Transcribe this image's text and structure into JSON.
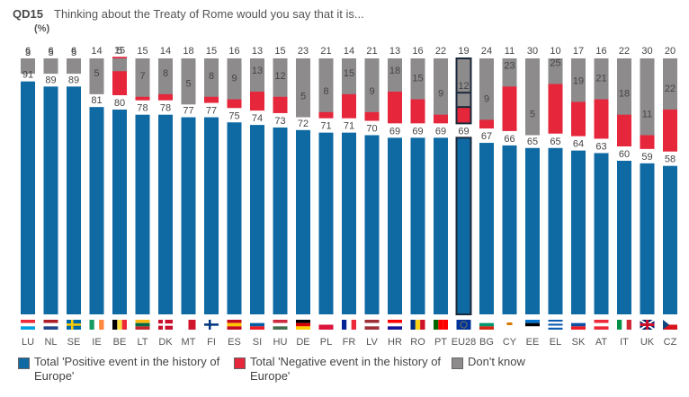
{
  "header": {
    "code": "QD15",
    "question": "Thinking about the Treaty of Rome would you say that it is...",
    "unit": "(%)"
  },
  "colors": {
    "positive": "#0f6aa3",
    "negative": "#e5263b",
    "dontknow": "#8e8b8c",
    "highlight_border": "#1b2a3a"
  },
  "chart_data": {
    "type": "bar",
    "stacked": true,
    "categories": [
      "LU",
      "NL",
      "SE",
      "IE",
      "BE",
      "LT",
      "DK",
      "MT",
      "FI",
      "ES",
      "SI",
      "HU",
      "DE",
      "PL",
      "FR",
      "LV",
      "HR",
      "RO",
      "PT",
      "EU28",
      "BG",
      "CY",
      "EE",
      "EL",
      "SK",
      "AT",
      "IT",
      "UK",
      "CZ"
    ],
    "highlight": "EU28",
    "series": [
      {
        "name": "Total 'Positive event in the history of Europe'",
        "color": "#0f6aa3",
        "values": [
          91,
          89,
          89,
          81,
          80,
          78,
          78,
          77,
          77,
          75,
          74,
          73,
          72,
          71,
          71,
          70,
          69,
          69,
          69,
          69,
          67,
          66,
          65,
          65,
          64,
          63,
          60,
          59,
          58
        ]
      },
      {
        "name": "Total 'Negative event in the history of Europe'",
        "color": "#e5263b",
        "values": [
          3,
          5,
          5,
          5,
          15,
          7,
          8,
          5,
          8,
          9,
          13,
          12,
          5,
          8,
          15,
          9,
          18,
          15,
          9,
          12,
          9,
          23,
          5,
          25,
          19,
          21,
          18,
          11,
          22
        ]
      },
      {
        "name": "Don't know",
        "color": "#8e8b8c",
        "values": [
          6,
          6,
          6,
          14,
          5,
          15,
          14,
          18,
          15,
          16,
          13,
          15,
          23,
          21,
          14,
          21,
          13,
          16,
          22,
          19,
          24,
          11,
          30,
          10,
          17,
          16,
          22,
          30,
          20
        ]
      }
    ],
    "legend_position": "bottom",
    "ylim": [
      0,
      100
    ]
  },
  "legend": [
    {
      "key": "positive",
      "line1": "Total 'Positive event in the history of",
      "line2": "Europe'"
    },
    {
      "key": "negative",
      "line1": "Total 'Negative event in the history of",
      "line2": "Europe'"
    },
    {
      "key": "dontknow",
      "line1": "Don't know",
      "line2": ""
    }
  ]
}
